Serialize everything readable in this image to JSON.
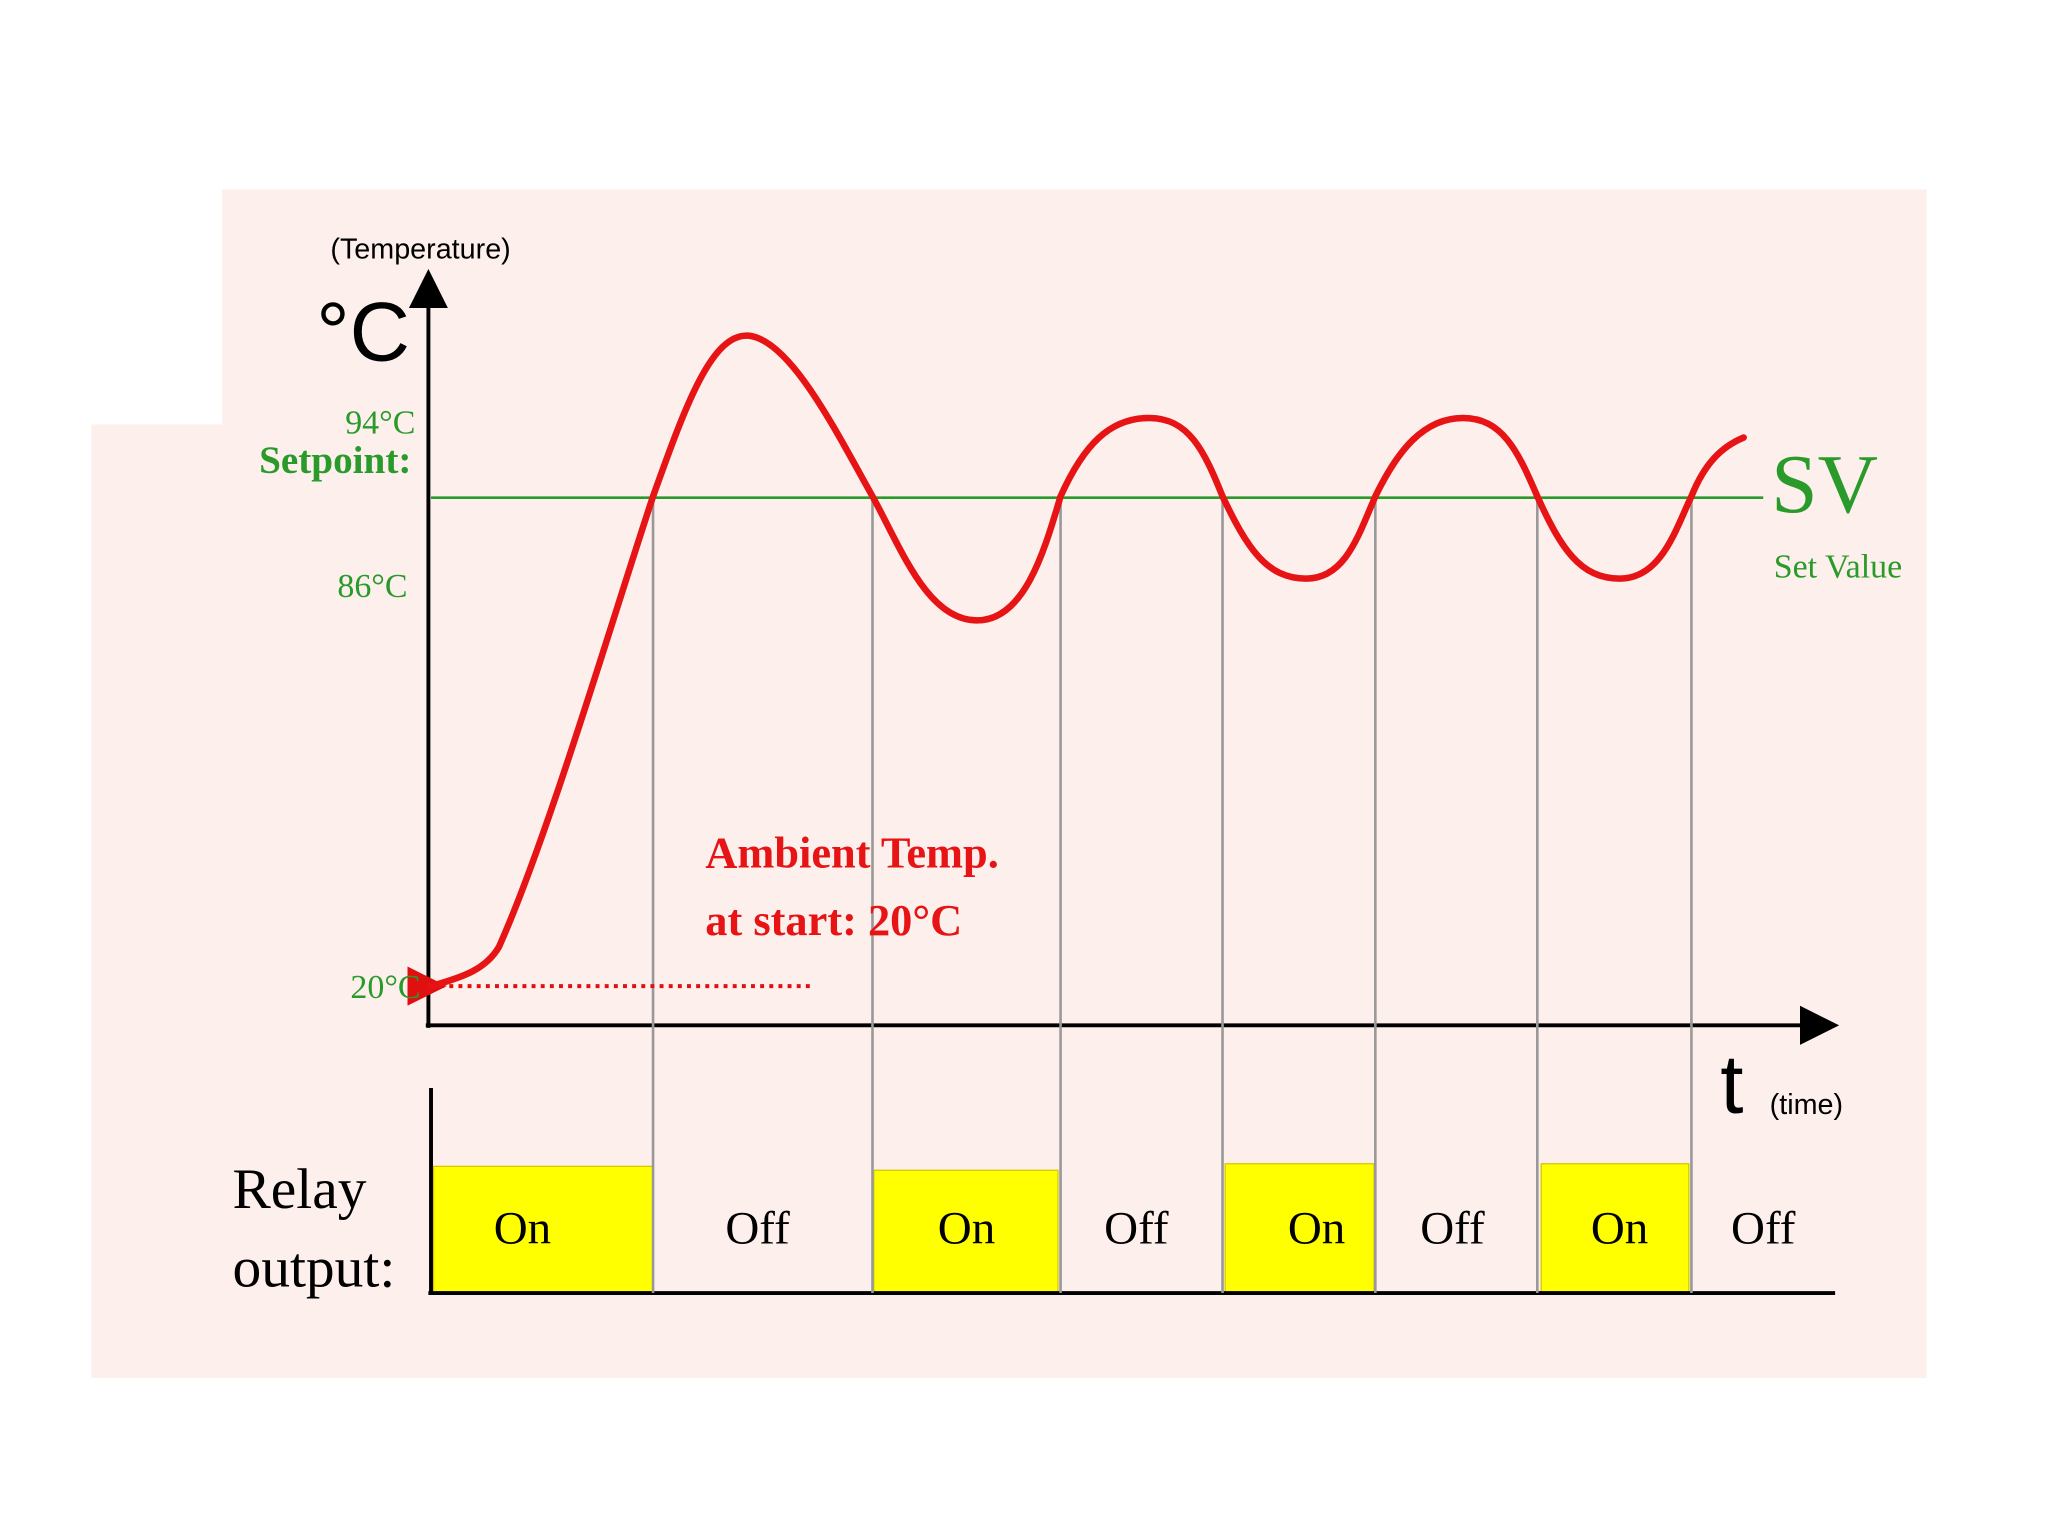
{
  "axes": {
    "y_caption": "(Temperature)",
    "y_unit": "°C",
    "x_unit": "t",
    "x_caption": "(time)"
  },
  "levels": {
    "high": "94°C",
    "setpoint": "Setpoint:",
    "low": "86°C",
    "ambient": "20°C"
  },
  "sv": {
    "label": "SV",
    "caption": "Set Value"
  },
  "annotation": {
    "line1": "Ambient Temp.",
    "line2": "at start:  20°C"
  },
  "relay": {
    "label1": "Relay",
    "label2": "output:",
    "states": [
      "On",
      "Off",
      "On",
      "Off",
      "On",
      "Off",
      "On",
      "Off"
    ]
  }
}
